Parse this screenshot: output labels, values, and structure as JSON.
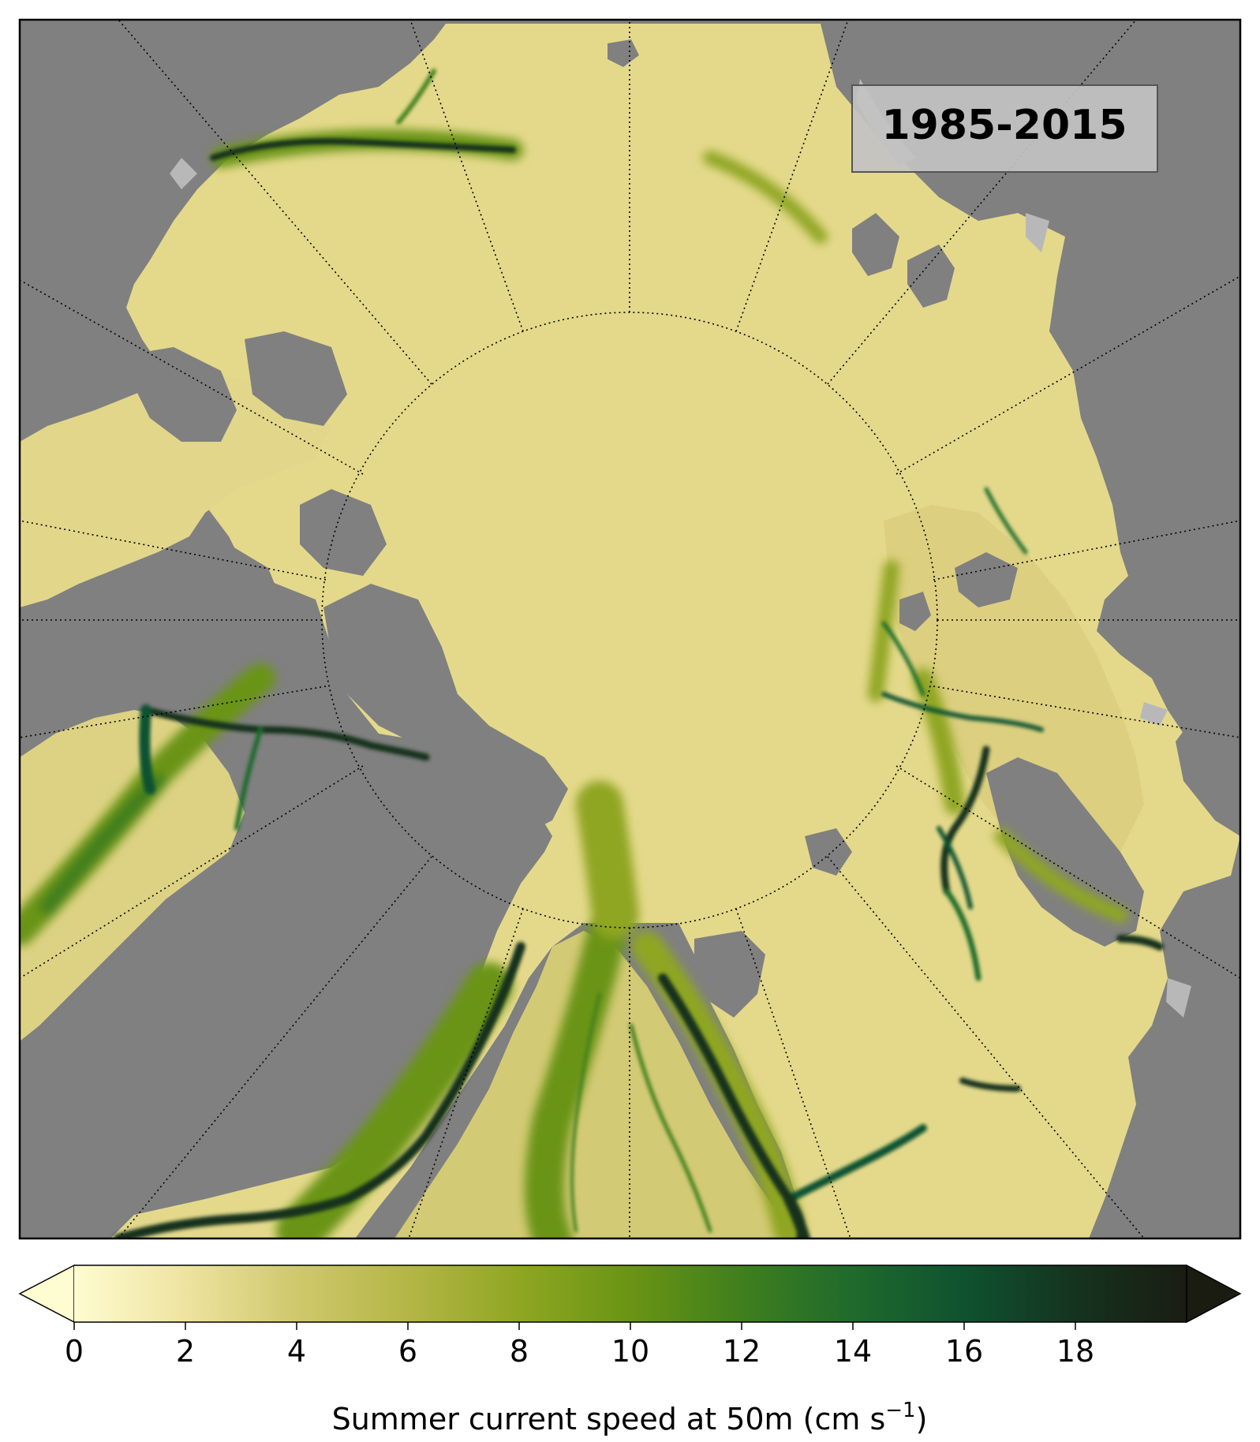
{
  "map": {
    "period_label": "1985-2015",
    "land_color": "#808080",
    "ice_color": "#b8b8b8",
    "frame_color": "#000000",
    "graticule_style": "dotted black"
  },
  "colorbar": {
    "label_main": "Summer current speed at 50m (cm s",
    "label_exponent": "−1",
    "label_close": ")",
    "ticks": [
      "0",
      "2",
      "4",
      "6",
      "8",
      "10",
      "12",
      "14",
      "16",
      "18"
    ],
    "range": [
      0,
      20
    ],
    "extend": "both",
    "colormap": [
      "#fefcd1",
      "#eee3a0",
      "#cfc86c",
      "#b4b646",
      "#8fa622",
      "#6a9414",
      "#3f7f1d",
      "#1f6a2c",
      "#0f5230",
      "#15331f",
      "#1a1c12"
    ]
  }
}
